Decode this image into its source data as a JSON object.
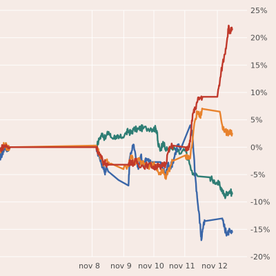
{
  "chart_data": {
    "type": "line",
    "title": "",
    "xlabel": "",
    "ylabel": "",
    "ylim": [
      -20,
      25
    ],
    "xlim": [
      0,
      100
    ],
    "grid": true,
    "legend": "none",
    "y_ticks": [
      {
        "value": 25,
        "label": "25%"
      },
      {
        "value": 20,
        "label": "20%"
      },
      {
        "value": 15,
        "label": "15%"
      },
      {
        "value": 10,
        "label": "10%"
      },
      {
        "value": 5,
        "label": "5%"
      },
      {
        "value": 0,
        "label": "0%"
      },
      {
        "value": -5,
        "label": "-5%"
      },
      {
        "value": -10,
        "label": "-10%"
      },
      {
        "value": -15,
        "label": "-15%"
      },
      {
        "value": -20,
        "label": "-20%"
      }
    ],
    "x_ticks": [
      {
        "value": 37.3,
        "label": "nov 8"
      },
      {
        "value": 50.1,
        "label": "nov 9"
      },
      {
        "value": 62.3,
        "label": "nov 10"
      },
      {
        "value": 74.8,
        "label": "nov 11"
      },
      {
        "value": 88.0,
        "label": "nov 12"
      }
    ],
    "series": [
      {
        "color": "#2e7d74",
        "points": [
          [
            0,
            -1.5
          ],
          [
            1,
            -0.5
          ],
          [
            2,
            0.5
          ],
          [
            3,
            -0.3
          ],
          [
            4,
            0
          ],
          [
            39,
            0
          ],
          [
            40.5,
            1.8
          ],
          [
            41.5,
            2.5
          ],
          [
            42.5,
            1.5
          ],
          [
            44,
            2.8
          ],
          [
            45,
            1.8
          ],
          [
            47,
            2.0
          ],
          [
            48,
            1.6
          ],
          [
            49,
            1.8
          ],
          [
            51,
            2.5
          ],
          [
            52,
            3.0
          ],
          [
            53,
            2.5
          ],
          [
            54,
            3.2
          ],
          [
            56,
            3.3
          ],
          [
            57,
            3.5
          ],
          [
            58,
            3.4
          ],
          [
            61,
            3.5
          ],
          [
            62,
            3.3
          ],
          [
            63,
            3.4
          ],
          [
            63.5,
            3.0
          ],
          [
            64,
            0.5
          ],
          [
            65,
            -0.5
          ],
          [
            66,
            1.0
          ],
          [
            67,
            -0.5
          ],
          [
            68,
            -0.3
          ],
          [
            71,
            -0.5
          ],
          [
            73,
            -1.2
          ],
          [
            75,
            -0.5
          ],
          [
            76,
            -2.0
          ],
          [
            78,
            -5.0
          ],
          [
            80,
            -5.3
          ],
          [
            85,
            -5.5
          ],
          [
            86,
            -6.0
          ],
          [
            88,
            -6.5
          ],
          [
            89,
            -7.0
          ],
          [
            90,
            -8.0
          ],
          [
            91,
            -9.0
          ],
          [
            92,
            -8.3
          ],
          [
            93,
            -8.0
          ],
          [
            94,
            -8.5
          ]
        ]
      },
      {
        "color": "#3a66a8",
        "points": [
          [
            0,
            -2
          ],
          [
            1,
            -1
          ],
          [
            2,
            0
          ],
          [
            3,
            -0.5
          ],
          [
            4,
            0
          ],
          [
            39,
            0
          ],
          [
            40,
            -1.5
          ],
          [
            41,
            -3.0
          ],
          [
            42,
            -3.5
          ],
          [
            42.5,
            -5.0
          ],
          [
            43,
            -3.5
          ],
          [
            44,
            -4.5
          ],
          [
            48,
            -6.0
          ],
          [
            52,
            -7.0
          ],
          [
            52.5,
            -2.0
          ],
          [
            53,
            -1.0
          ],
          [
            54,
            0.5
          ],
          [
            55,
            -2.0
          ],
          [
            56,
            -4.0
          ],
          [
            57,
            -1.5
          ],
          [
            58,
            -3.5
          ],
          [
            59,
            -2.0
          ],
          [
            60,
            -2.5
          ],
          [
            61,
            -2.7
          ],
          [
            65,
            -2.7
          ],
          [
            66,
            -4.0
          ],
          [
            67,
            -5.0
          ],
          [
            68,
            -3.0
          ],
          [
            69,
            -3.5
          ],
          [
            70,
            -2.8
          ],
          [
            71,
            -1.0
          ],
          [
            72,
            0.5
          ],
          [
            73,
            -0.5
          ],
          [
            77,
            4.0
          ],
          [
            78,
            2.0
          ],
          [
            79,
            -5.0
          ],
          [
            80,
            -10.0
          ],
          [
            81,
            -14.0
          ],
          [
            81.5,
            -17.0
          ],
          [
            82,
            -15.0
          ],
          [
            83,
            -13.5
          ],
          [
            90,
            -13.0
          ],
          [
            91,
            -15.0
          ],
          [
            92,
            -16.0
          ],
          [
            93,
            -15.0
          ],
          [
            94,
            -15.5
          ]
        ]
      },
      {
        "color": "#e8822d",
        "points": [
          [
            0,
            -1
          ],
          [
            1,
            0
          ],
          [
            2,
            0.5
          ],
          [
            3,
            -0.2
          ],
          [
            4,
            0
          ],
          [
            39,
            0.3
          ],
          [
            40,
            -1.0
          ],
          [
            41,
            -2.0
          ],
          [
            42,
            -3.0
          ],
          [
            43,
            -2.5
          ],
          [
            45,
            -3.0
          ],
          [
            50,
            -4.0
          ],
          [
            52,
            -3.5
          ],
          [
            53,
            -1.5
          ],
          [
            54,
            -2.5
          ],
          [
            55,
            -3.0
          ],
          [
            56,
            -2.0
          ],
          [
            57,
            -3.0
          ],
          [
            58,
            -2.5
          ],
          [
            60,
            -3.5
          ],
          [
            62,
            -3.0
          ],
          [
            63,
            -3.5
          ],
          [
            64,
            -4.5
          ],
          [
            65,
            -5.0
          ],
          [
            66,
            -4.0
          ],
          [
            67,
            -5.5
          ],
          [
            68,
            -4.5
          ],
          [
            70,
            -2.5
          ],
          [
            75,
            -1.5
          ],
          [
            77,
            -2.0
          ],
          [
            79,
            5.0
          ],
          [
            80,
            6.5
          ],
          [
            81,
            5.5
          ],
          [
            82,
            7.0
          ],
          [
            89,
            6.5
          ],
          [
            90,
            4.0
          ],
          [
            91,
            3.0
          ],
          [
            92,
            2.5
          ],
          [
            93,
            3.0
          ],
          [
            94,
            2.5
          ]
        ]
      },
      {
        "color": "#c0392b",
        "points": [
          [
            0,
            -0.5
          ],
          [
            1,
            0
          ],
          [
            2,
            0.3
          ],
          [
            3,
            0
          ],
          [
            4,
            0
          ],
          [
            39,
            0
          ],
          [
            40,
            -1.0
          ],
          [
            41,
            -2.0
          ],
          [
            42,
            -2.8
          ],
          [
            43,
            -3.0
          ],
          [
            44,
            -3.2
          ],
          [
            52,
            -3.2
          ],
          [
            53,
            -2.5
          ],
          [
            54,
            -3.0
          ],
          [
            55,
            -2.5
          ],
          [
            56,
            -3.0
          ],
          [
            58,
            -3.5
          ],
          [
            60,
            -3.2
          ],
          [
            62,
            -3.5
          ],
          [
            63,
            -3.8
          ],
          [
            64,
            -3.0
          ],
          [
            65,
            -4.0
          ],
          [
            66,
            -3.0
          ],
          [
            67,
            -3.2
          ],
          [
            68,
            -1.0
          ],
          [
            69,
            0
          ],
          [
            70,
            0.3
          ],
          [
            75,
            0
          ],
          [
            76,
            -0.5
          ],
          [
            77,
            1.0
          ],
          [
            78,
            6.0
          ],
          [
            79,
            7.0
          ],
          [
            80,
            8.5
          ],
          [
            81,
            9.0
          ],
          [
            82,
            9.2
          ],
          [
            88,
            9.2
          ],
          [
            89,
            12.0
          ],
          [
            90,
            15.0
          ],
          [
            91,
            17.0
          ],
          [
            92,
            20.0
          ],
          [
            92.5,
            22.0
          ],
          [
            93,
            21.0
          ],
          [
            94,
            21.5
          ]
        ]
      }
    ]
  }
}
